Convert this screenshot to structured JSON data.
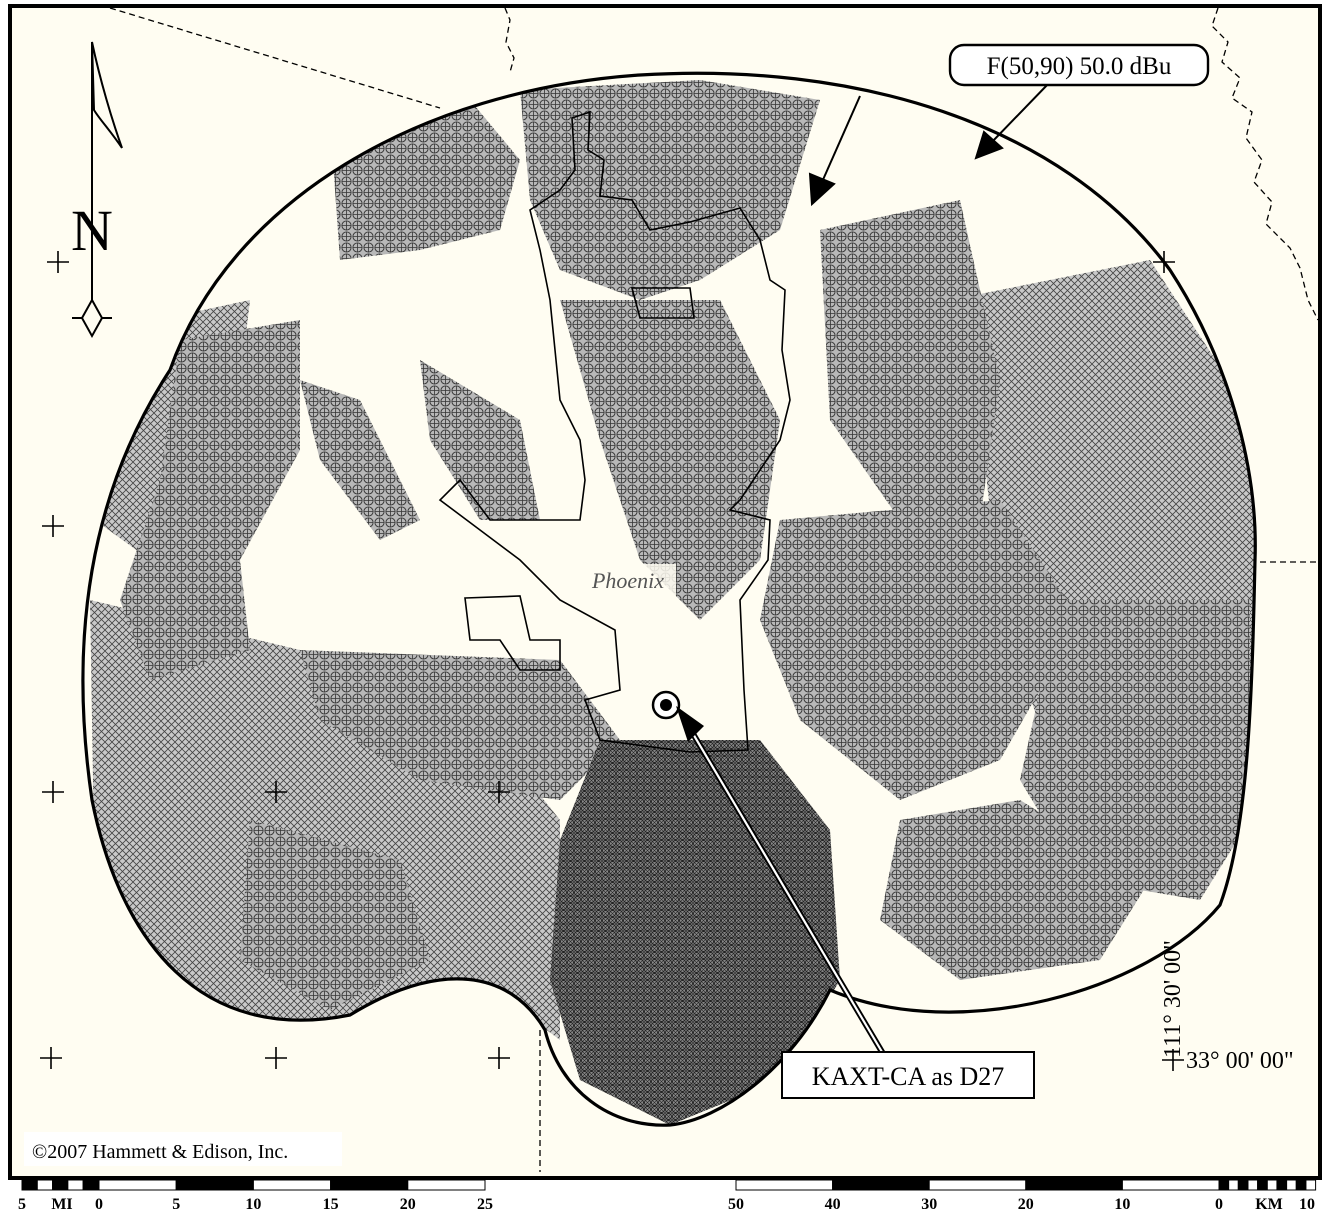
{
  "map": {
    "station_callout": "KAXT-CA as D27",
    "contour_callout": "F(50,90) 50.0 dBu",
    "city_label": "Phoenix",
    "north_label": "N",
    "longitude_label": "111° 30' 00\"",
    "latitude_label": "33° 00' 00\"",
    "copyright": "©2007 Hammett & Edison, Inc."
  },
  "scale_miles": {
    "unit_label": "MI",
    "left_label": "5",
    "tick_labels": [
      "0",
      "5",
      "10",
      "15",
      "20",
      "25"
    ]
  },
  "scale_km": {
    "unit_label": "KM",
    "right_label": "10",
    "tick_labels": [
      "50",
      "40",
      "30",
      "20",
      "10",
      "0"
    ]
  },
  "colors": {
    "background": "#fffdf2",
    "frame": "#000000",
    "coverage_fill": "#bdbdbd",
    "coverage_stroke": "#3a3a3a",
    "city_text": "#555555"
  }
}
